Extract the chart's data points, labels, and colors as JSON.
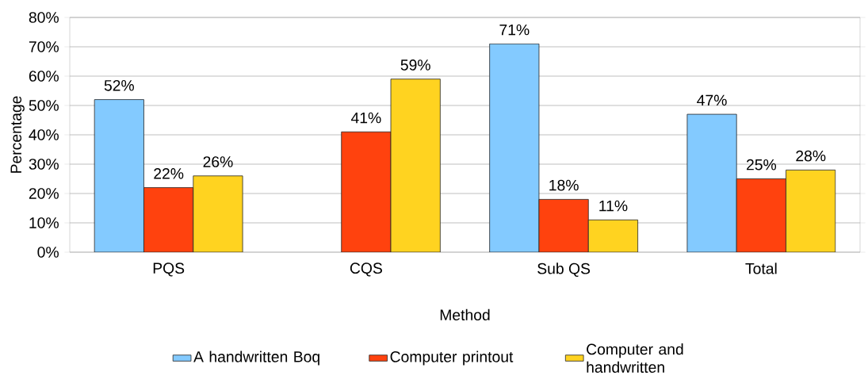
{
  "chart_data": {
    "type": "bar",
    "xlabel": "Method",
    "ylabel": "Percentage",
    "categories": [
      "PQS",
      "CQS",
      "Sub QS",
      "Total"
    ],
    "series": [
      {
        "name": "A handwritten Boq",
        "color": "#83caff",
        "values": [
          52,
          null,
          71,
          47
        ],
        "value_labels": [
          "52%",
          null,
          "71%",
          "47%"
        ]
      },
      {
        "name": "Computer printout",
        "color": "#ff420e",
        "values": [
          22,
          41,
          18,
          25
        ],
        "value_labels": [
          "22%",
          "41%",
          "18%",
          "25%"
        ]
      },
      {
        "name": "Computer and handwritten",
        "color": "#ffd320",
        "values": [
          26,
          59,
          11,
          28
        ],
        "value_labels": [
          "26%",
          "59%",
          "11%",
          "28%"
        ]
      }
    ],
    "ylim": [
      0,
      80
    ],
    "yticks": [
      {
        "value": 0,
        "label": "0%"
      },
      {
        "value": 10,
        "label": "10%"
      },
      {
        "value": 20,
        "label": "20%"
      },
      {
        "value": 30,
        "label": "30%"
      },
      {
        "value": 40,
        "label": "40%"
      },
      {
        "value": 50,
        "label": "50%"
      },
      {
        "value": 60,
        "label": "60%"
      },
      {
        "value": 70,
        "label": "70%"
      },
      {
        "value": 80,
        "label": "80%"
      }
    ],
    "grid": "y",
    "legend": "bottom"
  }
}
